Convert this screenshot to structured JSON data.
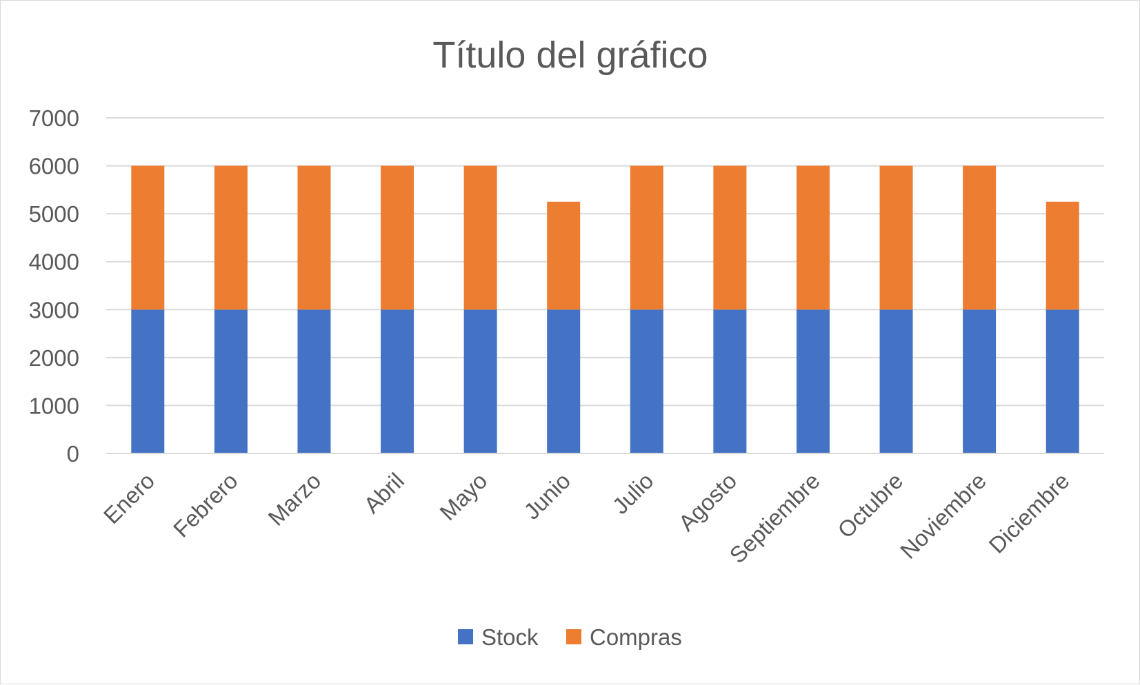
{
  "chart_data": {
    "type": "bar",
    "stacked": true,
    "title": "Título del gráfico",
    "xlabel": "",
    "ylabel": "",
    "categories": [
      "Enero",
      "Febrero",
      "Marzo",
      "Abril",
      "Mayo",
      "Junio",
      "Julio",
      "Agosto",
      "Septiembre",
      "Octubre",
      "Noviembre",
      "Diciembre"
    ],
    "series": [
      {
        "name": "Stock",
        "color": "#4472c4",
        "values": [
          3000,
          3000,
          3000,
          3000,
          3000,
          3000,
          3000,
          3000,
          3000,
          3000,
          3000,
          3000
        ]
      },
      {
        "name": "Compras",
        "color": "#ed7d31",
        "values": [
          3000,
          3000,
          3000,
          3000,
          3000,
          2250,
          3000,
          3000,
          3000,
          3000,
          3000,
          2250
        ]
      }
    ],
    "ylim": [
      0,
      7000
    ],
    "yticks": [
      "0",
      "1000",
      "2000",
      "3000",
      "4000",
      "5000",
      "6000",
      "7000"
    ],
    "grid": true,
    "legend_position": "bottom"
  }
}
